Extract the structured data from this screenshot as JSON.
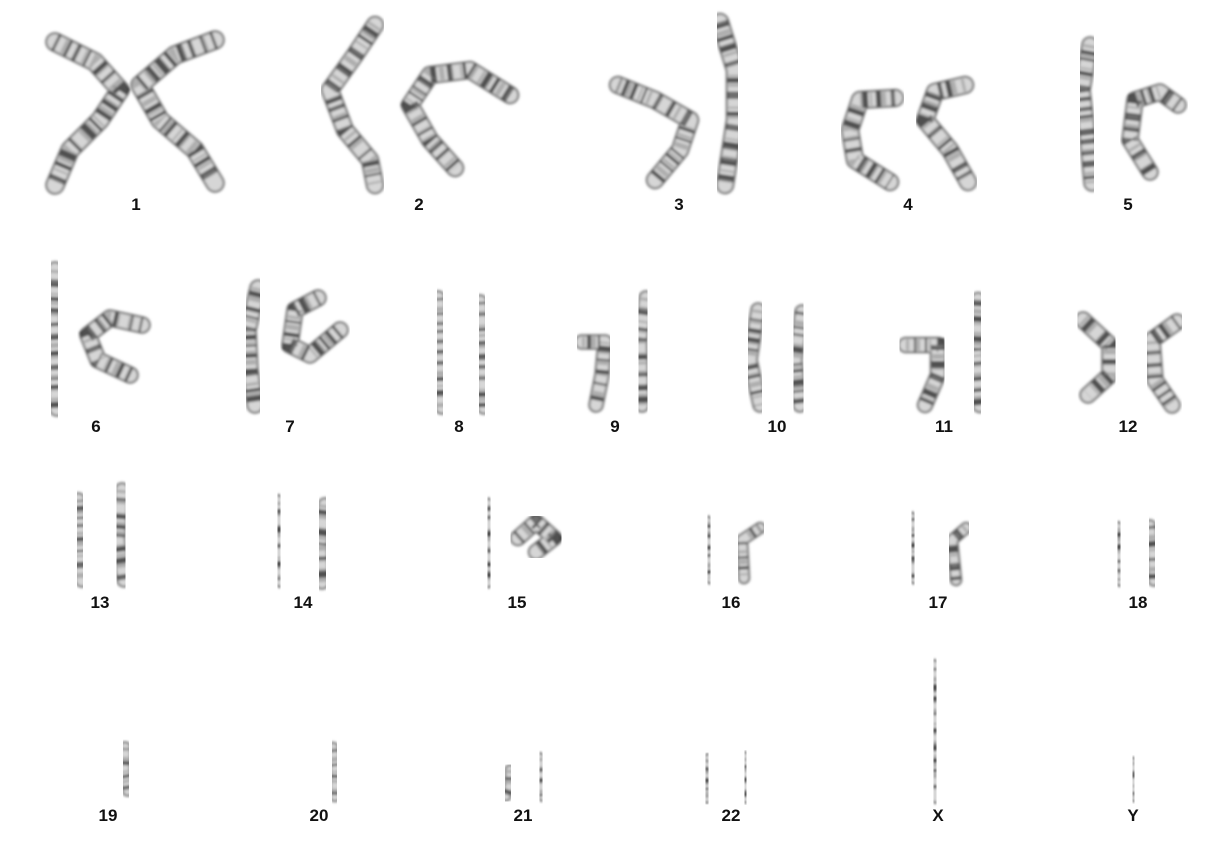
{
  "labels": [
    "1",
    "2",
    "3",
    "4",
    "5",
    "6",
    "7",
    "8",
    "9",
    "10",
    "11",
    "12",
    "13",
    "14",
    "15",
    "16",
    "17",
    "18",
    "19",
    "20",
    "21",
    "22",
    "X",
    "Y"
  ],
  "colors": {
    "background": "#ffffff",
    "chromatid_light": "#d6d6d6",
    "chromatid_mid": "#8c8c8c",
    "band_dark": "#222222",
    "label": "#111111"
  }
}
